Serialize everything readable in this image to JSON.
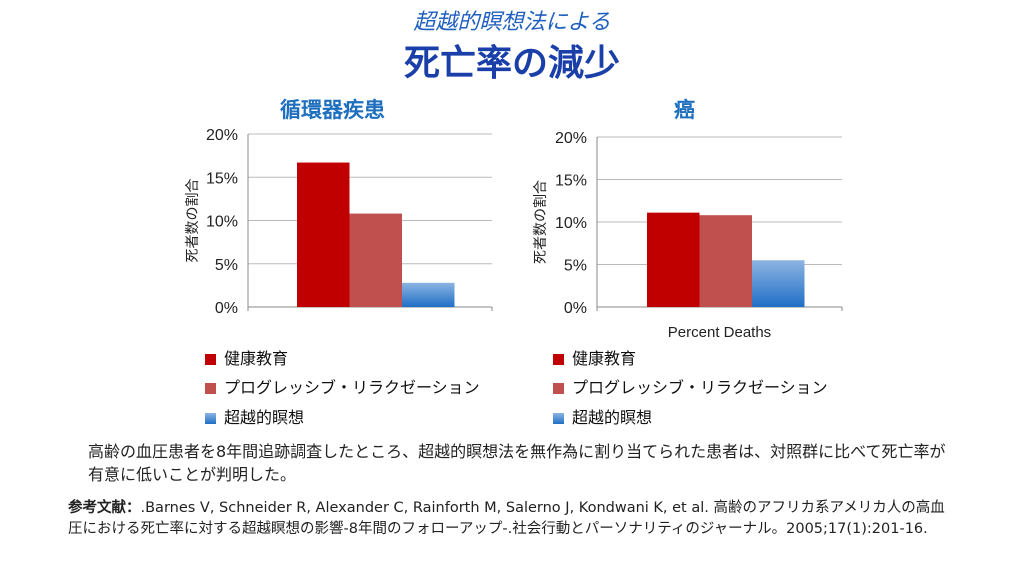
{
  "subtitle": "超越的瞑想法による",
  "title": "死亡率の減少",
  "colors": {
    "health_ed": "#c00000",
    "relax": "#c0504d",
    "tm_top": "#8db4e2",
    "tm_bottom": "#1f6fc6"
  },
  "chart_data": [
    {
      "type": "bar",
      "title": "循環器疾患",
      "ylabel": "死者数の割合",
      "xlabel": "",
      "ylim": [
        0,
        20
      ],
      "yticks": [
        "0%",
        "5%",
        "10%",
        "15%",
        "20%"
      ],
      "grid": true,
      "series": [
        {
          "name": "健康教育",
          "values": [
            16.7
          ]
        },
        {
          "name": "プログレッシブ・リラクゼーション",
          "values": [
            10.8
          ]
        },
        {
          "name": "超越的瞑想",
          "values": [
            2.8
          ]
        }
      ]
    },
    {
      "type": "bar",
      "title": "癌",
      "ylabel": "死者数の割合",
      "xlabel": "Percent Deaths",
      "ylim": [
        0,
        20
      ],
      "yticks": [
        "0%",
        "5%",
        "10%",
        "15%",
        "20%"
      ],
      "grid": true,
      "series": [
        {
          "name": "健康教育",
          "values": [
            11.1
          ]
        },
        {
          "name": "プログレッシブ・リラクゼーション",
          "values": [
            10.8
          ]
        },
        {
          "name": "超越的瞑想",
          "values": [
            5.5
          ]
        }
      ]
    }
  ],
  "legend": [
    "健康教育",
    "プログレッシブ・リラクゼーション",
    "超越的瞑想"
  ],
  "summary": "高齢の血圧患者を8年間追跡調査したところ、超越的瞑想法を無作為に割り当てられた患者は、対照群に比べて死亡率が有意に低いことが判明した。",
  "reference_label": "参考文献：",
  "reference": ".Barnes V, Schneider R, Alexander C, Rainforth M, Salerno J, Kondwani K, et al. 高齢のアフリカ系アメリカ人の高血圧における死亡率に対する超越瞑想の影響-8年間のフォローアップ-.社会行動とパーソナリティのジャーナル。2005;17(1):201-16."
}
